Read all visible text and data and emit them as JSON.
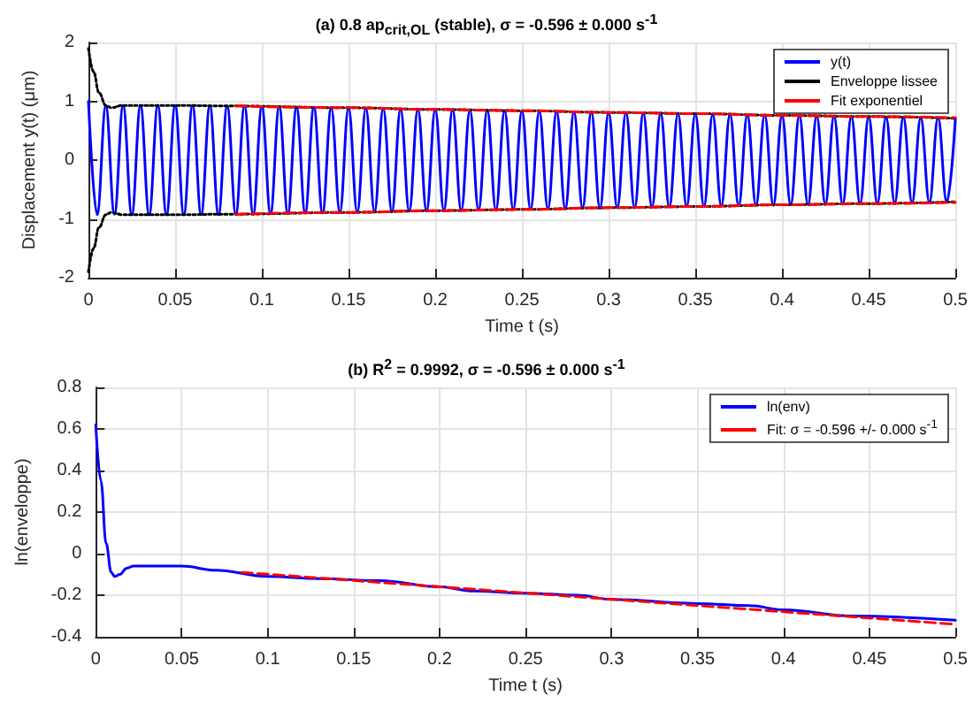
{
  "chart_data": [
    {
      "type": "line",
      "title": "(a) 0.8 ap$_{crit,OL}$ (stable), σ = -0.596 ± 0.000 s$^{-1}$",
      "xlabel": "Time t (s)",
      "ylabel": "Displacement y(t) (μm)",
      "x": [
        0,
        0.005,
        0.01,
        0.015,
        0.02,
        0.025,
        0.03,
        0.035,
        0.04,
        0.045,
        0.05,
        0.055,
        0.06,
        0.065,
        0.07,
        0.075,
        0.08,
        0.085,
        0.09,
        0.095,
        0.1,
        0.105,
        0.11,
        0.115,
        0.12,
        0.125,
        0.13,
        0.135,
        0.14,
        0.145,
        0.15,
        0.155,
        0.16,
        0.165,
        0.17,
        0.175,
        0.18,
        0.185,
        0.19,
        0.195,
        0.2,
        0.205,
        0.21,
        0.215,
        0.22,
        0.225,
        0.23,
        0.235,
        0.24,
        0.245,
        0.25,
        0.255,
        0.26,
        0.265,
        0.27,
        0.275,
        0.28,
        0.285,
        0.29,
        0.295,
        0.3,
        0.305,
        0.31,
        0.315,
        0.32,
        0.325,
        0.33,
        0.335,
        0.34,
        0.345,
        0.35,
        0.355,
        0.36,
        0.365,
        0.37,
        0.375,
        0.38,
        0.385,
        0.39,
        0.395,
        0.4,
        0.405,
        0.41,
        0.415,
        0.42,
        0.425,
        0.43,
        0.435,
        0.44,
        0.445,
        0.45,
        0.455,
        0.46,
        0.465,
        0.47,
        0.475,
        0.48,
        0.485,
        0.49,
        0.495,
        0.5
      ],
      "series": [
        {
          "name": "y(t)",
          "color": "#0000ff",
          "line_style": "solid",
          "values": [
            1.0,
            -0.93,
            0.92,
            -0.92,
            0.93,
            -0.93,
            0.93,
            -0.93,
            0.93,
            -0.93,
            0.93,
            -0.93,
            0.93,
            -0.93,
            0.93,
            -0.93,
            0.92,
            -0.92,
            0.92,
            -0.92,
            0.91,
            -0.91,
            0.91,
            -0.91,
            0.9,
            -0.9,
            0.9,
            -0.9,
            0.89,
            -0.89,
            0.89,
            -0.89,
            0.88,
            -0.88,
            0.88,
            -0.88,
            0.87,
            -0.87,
            0.87,
            -0.87,
            0.86,
            -0.86,
            0.86,
            -0.86,
            0.85,
            -0.85,
            0.85,
            -0.85,
            0.84,
            -0.84,
            0.84,
            -0.84,
            0.83,
            -0.83,
            0.83,
            -0.83,
            0.82,
            -0.82,
            0.82,
            -0.82,
            0.81,
            -0.81,
            0.81,
            -0.81,
            0.8,
            -0.8,
            0.8,
            -0.8,
            0.79,
            -0.79,
            0.79,
            -0.79,
            0.78,
            -0.78,
            0.78,
            -0.78,
            0.77,
            -0.77,
            0.77,
            -0.77,
            0.76,
            -0.76,
            0.76,
            -0.76,
            0.75,
            -0.75,
            0.75,
            -0.75,
            0.74,
            -0.74,
            0.74,
            -0.74,
            0.73,
            -0.73,
            0.73,
            -0.73,
            0.72,
            -0.72,
            0.72,
            -0.72,
            0.71
          ]
        },
        {
          "name": "Enveloppe lissee",
          "color": "#000000",
          "line_style": "dotted",
          "x": [
            0,
            0.003,
            0.006,
            0.01,
            0.013,
            0.02,
            0.05,
            0.08,
            0.15,
            0.2,
            0.25,
            0.3,
            0.35,
            0.4,
            0.45,
            0.5
          ],
          "values": [
            1.9,
            1.5,
            1.15,
            0.93,
            0.89,
            0.93,
            0.93,
            0.92,
            0.89,
            0.86,
            0.84,
            0.81,
            0.79,
            0.76,
            0.74,
            0.71
          ]
        },
        {
          "color": "#000000",
          "line_style": "dotted",
          "x": [
            0,
            0.003,
            0.006,
            0.01,
            0.013,
            0.02,
            0.05,
            0.08,
            0.15,
            0.2,
            0.25,
            0.3,
            0.35,
            0.4,
            0.45,
            0.5
          ],
          "values": [
            -1.9,
            -1.5,
            -1.15,
            -0.93,
            -0.89,
            -0.93,
            -0.93,
            -0.92,
            -0.89,
            -0.86,
            -0.84,
            -0.81,
            -0.79,
            -0.76,
            -0.74,
            -0.71
          ]
        },
        {
          "name": "Fit exponentiel",
          "color": "#ff0000",
          "line_style": "dashed",
          "x": [
            0.085,
            0.15,
            0.2,
            0.25,
            0.3,
            0.35,
            0.4,
            0.45,
            0.5
          ],
          "values": [
            0.92,
            0.89,
            0.86,
            0.84,
            0.81,
            0.79,
            0.76,
            0.74,
            0.72
          ]
        },
        {
          "color": "#ff0000",
          "line_style": "dashed",
          "x": [
            0.085,
            0.15,
            0.2,
            0.25,
            0.3,
            0.35,
            0.4,
            0.45,
            0.5
          ],
          "values": [
            -0.92,
            -0.89,
            -0.86,
            -0.84,
            -0.81,
            -0.79,
            -0.76,
            -0.74,
            -0.72
          ]
        }
      ],
      "xlim": [
        0,
        0.5
      ],
      "xticks": [
        0,
        0.05,
        0.1,
        0.15,
        0.2,
        0.25,
        0.3,
        0.35,
        0.4,
        0.45,
        0.5
      ],
      "ylim": [
        -2,
        2
      ],
      "yticks": [
        -2,
        -1,
        0,
        1,
        2
      ],
      "grid": true,
      "legend": "top right",
      "marker": "none"
    },
    {
      "type": "line",
      "title": "(b) R$^{2}$ = 0.9992, σ = -0.596 ± 0.000 s$^{-1}$",
      "xlabel": "Time t (s)",
      "ylabel": "ln(enveloppe)",
      "series": [
        {
          "name": "ln(env)",
          "color": "#0000ff",
          "line_style": "solid",
          "x": [
            0,
            0.003,
            0.006,
            0.009,
            0.011,
            0.014,
            0.018,
            0.022,
            0.05,
            0.07,
            0.1,
            0.13,
            0.165,
            0.2,
            0.22,
            0.25,
            0.28,
            0.3,
            0.35,
            0.38,
            0.4,
            0.44,
            0.5
          ],
          "values": [
            0.62,
            0.35,
            0.05,
            -0.09,
            -0.11,
            -0.1,
            -0.07,
            -0.06,
            -0.06,
            -0.08,
            -0.11,
            -0.12,
            -0.13,
            -0.16,
            -0.18,
            -0.19,
            -0.2,
            -0.22,
            -0.24,
            -0.25,
            -0.27,
            -0.3,
            -0.32
          ]
        },
        {
          "name": "Fit: σ = -0.596 +/- 0.000 s$^{-1}$",
          "color": "#ff0000",
          "line_style": "dashed",
          "x": [
            0.085,
            0.5
          ],
          "values": [
            -0.09,
            -0.34
          ]
        }
      ],
      "xlim": [
        0,
        0.5
      ],
      "xticks": [
        0,
        0.05,
        0.1,
        0.15,
        0.2,
        0.25,
        0.3,
        0.35,
        0.4,
        0.45,
        0.5
      ],
      "ylim": [
        -0.4,
        0.8
      ],
      "yticks": [
        -0.4,
        -0.2,
        0,
        0.2,
        0.4,
        0.6,
        0.8
      ],
      "grid": true,
      "legend": "top right",
      "marker": "none"
    }
  ]
}
